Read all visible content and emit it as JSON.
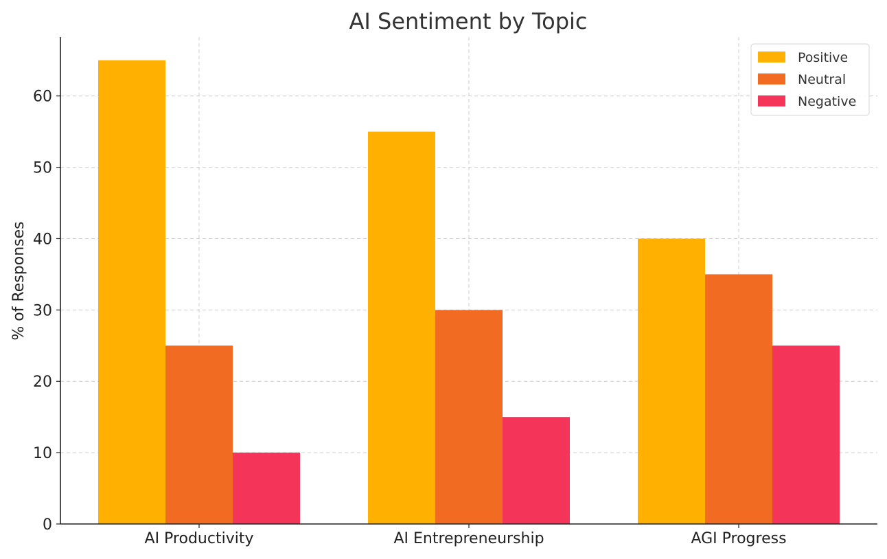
{
  "chart_data": {
    "type": "bar",
    "title": "AI Sentiment by Topic",
    "xlabel": "",
    "ylabel": "% of Responses",
    "categories": [
      "AI Productivity",
      "AI Entrepreneurship",
      "AGI Progress"
    ],
    "series": [
      {
        "name": "Positive",
        "color": "#FFB000",
        "values": [
          65,
          55,
          40
        ]
      },
      {
        "name": "Neutral",
        "color": "#F26B22",
        "values": [
          25,
          30,
          35
        ]
      },
      {
        "name": "Negative",
        "color": "#F5345A",
        "values": [
          10,
          15,
          25
        ]
      }
    ],
    "ylim": [
      0,
      68.25
    ],
    "yticks": [
      "0",
      "10",
      "20",
      "30",
      "40",
      "50",
      "60"
    ],
    "grid": true,
    "legend_position": "top-right"
  }
}
